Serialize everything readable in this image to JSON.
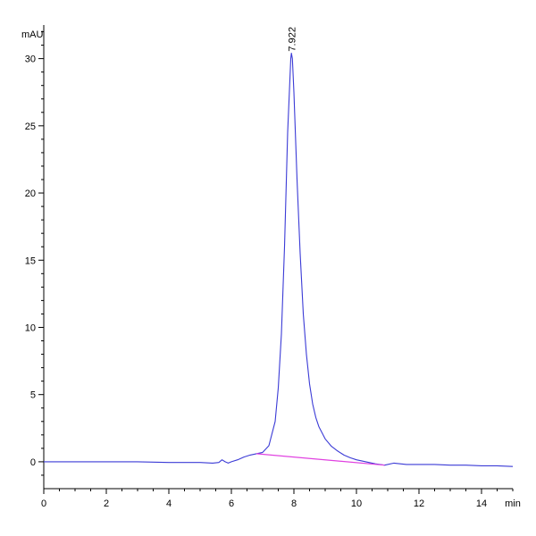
{
  "chart_data": {
    "type": "line",
    "title": "",
    "xlabel": "min",
    "ylabel": "mAU",
    "xlim": [
      0,
      15
    ],
    "ylim": [
      -2,
      32.5
    ],
    "x_ticks": [
      0,
      2,
      4,
      6,
      8,
      10,
      12,
      14
    ],
    "y_ticks": [
      0,
      5,
      10,
      15,
      20,
      25,
      30
    ],
    "grid": false,
    "legend": "none",
    "colors": {
      "signal": "#3b3bd6",
      "baseline": "#e040e0",
      "axis": "#000000"
    },
    "series": [
      {
        "x": [
          0,
          1,
          2,
          3,
          4,
          5,
          5.4,
          5.6,
          5.7,
          5.8,
          5.9,
          6.0,
          6.2,
          6.4,
          6.6,
          6.8,
          7.0,
          7.2,
          7.4,
          7.5,
          7.6,
          7.7,
          7.8,
          7.9,
          7.92,
          7.95,
          8.0,
          8.1,
          8.2,
          8.3,
          8.4,
          8.5,
          8.6,
          8.7,
          8.8,
          9.0,
          9.2,
          9.4,
          9.6,
          9.8,
          10.0,
          10.3,
          10.6,
          10.9,
          11.2,
          11.4,
          11.6,
          12.0,
          12.5,
          13.0,
          13.5,
          14.0,
          14.5,
          15.0
        ],
        "values": [
          0.0,
          0.0,
          0.0,
          0.0,
          -0.05,
          -0.05,
          -0.1,
          -0.05,
          0.15,
          0.0,
          -0.1,
          0.0,
          0.15,
          0.35,
          0.5,
          0.6,
          0.7,
          1.2,
          3.0,
          5.5,
          9.5,
          16.0,
          24.5,
          30.0,
          30.4,
          30.0,
          27.5,
          21.0,
          15.5,
          11.0,
          8.0,
          5.8,
          4.3,
          3.3,
          2.6,
          1.7,
          1.15,
          0.8,
          0.5,
          0.3,
          0.15,
          0.0,
          -0.15,
          -0.25,
          -0.1,
          -0.15,
          -0.2,
          -0.2,
          -0.2,
          -0.25,
          -0.25,
          -0.3,
          -0.3,
          -0.35
        ]
      },
      {
        "x": [
          6.8,
          10.9
        ],
        "values": [
          0.6,
          -0.25
        ]
      }
    ],
    "annotations": [
      {
        "text": "7.922",
        "x": 7.922,
        "y": 30.4
      }
    ]
  }
}
